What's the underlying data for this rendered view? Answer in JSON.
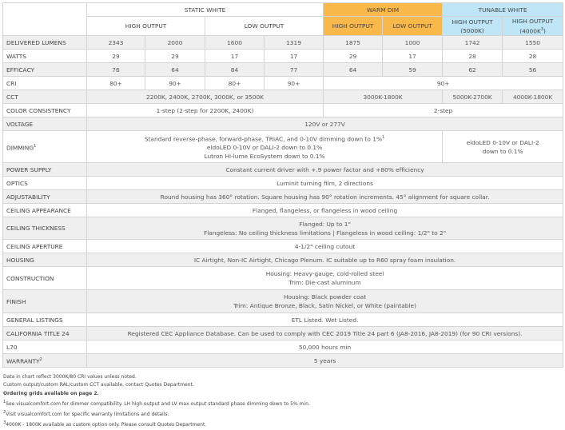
{
  "colors": {
    "warm_dim": "#f9b84a",
    "tunable_white": "#bfe6f7",
    "row_alt": "#efefef"
  },
  "groups": {
    "static": "STATIC WHITE",
    "warm": "WARM DIM",
    "tunable": "TUNABLE WHITE"
  },
  "subheads": {
    "s_high": "HIGH OUTPUT",
    "s_low": "LOW OUTPUT",
    "w_high": "HIGH OUTPUT",
    "w_low": "LOW OUTPUT",
    "t_5000": "HIGH OUTPUT (5000K)",
    "t_4000": "HIGH OUTPUT (4000K",
    "t_4000_sup": "3",
    ")": ")"
  },
  "rows": {
    "lumens": {
      "label": "DELIVERED LUMENS",
      "v": [
        "2343",
        "2000",
        "1600",
        "1319",
        "1875",
        "1000",
        "1742",
        "1550"
      ]
    },
    "watts": {
      "label": "WATTS",
      "v": [
        "29",
        "29",
        "17",
        "17",
        "29",
        "17",
        "28",
        "28"
      ]
    },
    "efficacy": {
      "label": "EFFICACY",
      "v": [
        "76",
        "64",
        "84",
        "77",
        "64",
        "59",
        "62",
        "56"
      ]
    },
    "cri": {
      "label": "CRI",
      "v": [
        "80+",
        "90+",
        "80+",
        "90+",
        "90+"
      ]
    },
    "cct": {
      "label": "CCT",
      "v": [
        "2200K, 2400K, 2700K, 3000K, or 3500K",
        "3000K-1800K",
        "5000K-2700K",
        "4000K-1800K"
      ]
    },
    "color": {
      "label": "COLOR CONSISTENCY",
      "v": [
        "1-step (2-step for 2200K, 2400K)",
        "2-step"
      ]
    },
    "voltage": {
      "label": "VOLTAGE",
      "v": "120V or 277V"
    },
    "dimming": {
      "label": "DIMMING",
      "sup": "1",
      "lines": [
        "Standard reverse-phase, forward-phase, TRIAC, and 0-10V dimming down to 1%",
        "eldoLED 0-10V or DALI-2 down to 0.1%",
        "Lutron Hi-lume EcoSystem down to 0.1%"
      ],
      "line1_sup": "1",
      "tunable_lines": [
        "eldoLED 0-10V or DALI-2",
        "down to 0.1%"
      ]
    },
    "power": {
      "label": "POWER SUPPLY",
      "v": "Constant current driver with +.9 power factor and +80% efficiency"
    },
    "optics": {
      "label": "OPTICS",
      "v": "Luminit turning film, 2 directions"
    },
    "adjust": {
      "label": "ADJUSTABILITY",
      "v": "Round housing has 360° rotation. Square housing has 90° rotation increments. 45° alignment for square collar."
    },
    "appearance": {
      "label": "CEILING APPEARANCE",
      "v": "Flanged, flangeless, or flangeless in wood ceiling"
    },
    "thickness": {
      "label": "CEILING THICKNESS",
      "lines": [
        "Flanged: Up to 1\"",
        "Flangeless: No ceiling thickness limitations | Flangeless in wood ceiling: 1/2\" to 2\""
      ]
    },
    "aperture": {
      "label": "CEILING APERTURE",
      "v": "4-1/2\" ceiling cutout"
    },
    "housing": {
      "label": "HOUSING",
      "v": "IC Airtight, Non-IC Airtight, Chicago Plenum. IC suitable up to R60 spray foam insulation."
    },
    "construction": {
      "label": "CONSTRUCTION",
      "lines": [
        "Housing: Heavy-gauge, cold-rolled steel",
        "Trim: Die-cast aluminum"
      ]
    },
    "finish": {
      "label": "FINISH",
      "lines": [
        "Housing: Black powder coat",
        "Trim: Antique Bronze, Black, Satin Nickel, or White (paintable)"
      ]
    },
    "listings": {
      "label": "GENERAL LISTINGS",
      "v": "ETL Listed. Wet Listed."
    },
    "title24": {
      "label": "CALIFORNIA TITLE 24",
      "v": "Registered CEC Appliance Database. Can be used to comply with CEC 2019 Title 24 part 6 (JA8-2016, JA8-2019) (for 90 CRI versions)."
    },
    "l70": {
      "label": "L70",
      "v": "50,000 hours min"
    },
    "warranty": {
      "label": "WARRANTY",
      "sup": "2",
      "v": "5 years"
    }
  },
  "notes": {
    "n1": "Data in chart reflect 3000K/80 CRI values unless noted.",
    "n2": "Custom output/custom RAL/custom CCT available, contact Quotes Department.",
    "n3": "Ordering grids available on page 2.",
    "f1_num": "1",
    "f1": "See visualcomfort.com for dimmer compatibility.  LH high output and LV max output standard phase dimming down to 5% min.",
    "f2_num": "2",
    "f2": "Visit visualcomfort.com for specific warranty limitations and details.",
    "f3_num": "3",
    "f3": "4000K - 1800K available as custom option only. Please consult Quotes Department."
  }
}
